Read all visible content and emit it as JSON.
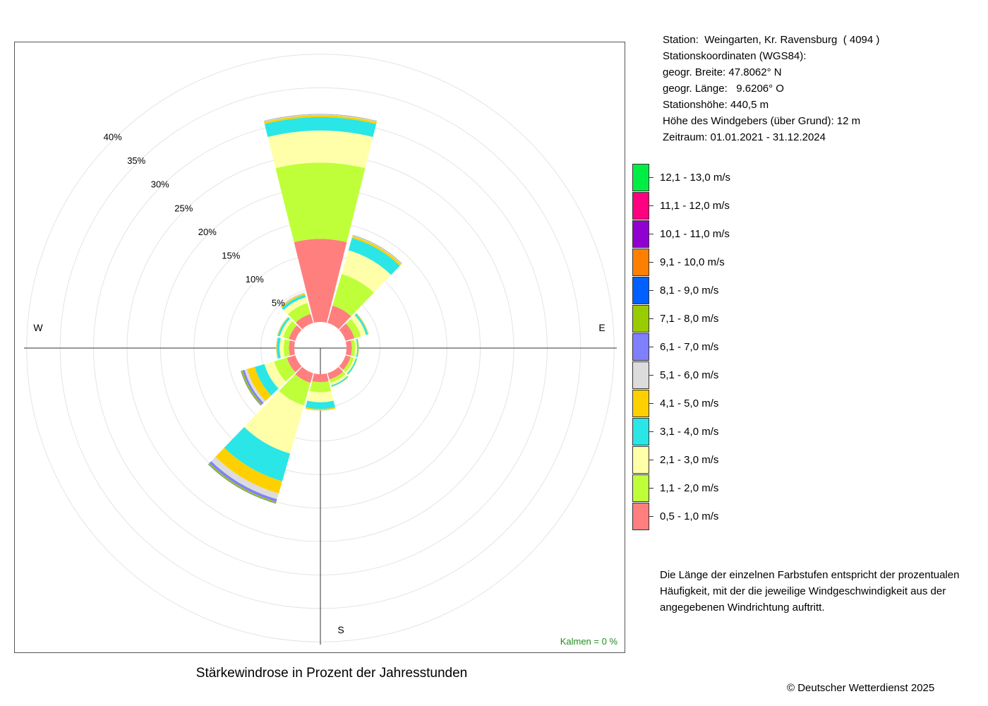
{
  "chart_data": {
    "type": "wind-rose",
    "title": "Stärkewindrose in Prozent der Jahresstunden",
    "radial_axis": {
      "max": 40,
      "ticks": [
        5,
        10,
        15,
        20,
        25,
        30,
        35,
        40
      ],
      "tick_labels": [
        "5%",
        "10%",
        "15%",
        "20%",
        "25%",
        "30%",
        "35%",
        "40%"
      ]
    },
    "compass_labels": {
      "west": "W",
      "east": "E",
      "south": "S"
    },
    "calm_label": "Kalmen  =  0 %",
    "calm_color": "#228b22",
    "speed_classes": [
      {
        "label": "0,5 - 1,0 m/s",
        "color": "#ff7f7f"
      },
      {
        "label": "1,1 - 2,0 m/s",
        "color": "#bfff3a"
      },
      {
        "label": "2,1 - 3,0 m/s",
        "color": "#ffffaa"
      },
      {
        "label": "3,1 - 4,0 m/s",
        "color": "#2ae6e6"
      },
      {
        "label": "4,1 - 5,0 m/s",
        "color": "#ffd000"
      },
      {
        "label": "5,1 - 6,0 m/s",
        "color": "#dcdcdc"
      },
      {
        "label": "6,1 - 7,0 m/s",
        "color": "#8080ff"
      },
      {
        "label": "7,1 - 8,0 m/s",
        "color": "#99cc00"
      },
      {
        "label": "8,1 - 9,0 m/s",
        "color": "#0060ff"
      },
      {
        "label": "9,1 - 10,0 m/s",
        "color": "#ff8000"
      },
      {
        "label": "10,1 - 11,0 m/s",
        "color": "#9000d0"
      },
      {
        "label": "11,1 - 12,0 m/s",
        "color": "#ff0080"
      },
      {
        "label": "12,1 - 13,0 m/s",
        "color": "#00ee44"
      }
    ],
    "directions": [
      {
        "direction_deg": 0,
        "values": [
          12.4,
          11.4,
          4.8,
          2.0,
          0.3,
          0.1,
          0.05,
          0.03,
          0,
          0,
          0,
          0,
          0
        ]
      },
      {
        "direction_deg": 30,
        "values": [
          2.7,
          4.9,
          3.7,
          1.9,
          0.3,
          0.1,
          0.05,
          0.03,
          0,
          0,
          0,
          0,
          0
        ]
      },
      {
        "direction_deg": 60,
        "values": [
          1.4,
          1.0,
          0.8,
          0.3,
          0.1,
          0.05,
          0,
          0,
          0,
          0,
          0,
          0,
          0
        ]
      },
      {
        "direction_deg": 90,
        "values": [
          0.8,
          0.5,
          0.3,
          0.2,
          0.05,
          0,
          0,
          0,
          0,
          0,
          0,
          0,
          0
        ]
      },
      {
        "direction_deg": 120,
        "values": [
          0.8,
          0.5,
          0.3,
          0.2,
          0.05,
          0,
          0,
          0,
          0,
          0,
          0,
          0,
          0
        ]
      },
      {
        "direction_deg": 150,
        "values": [
          1.0,
          0.5,
          0.4,
          0.2,
          0.05,
          0,
          0,
          0,
          0,
          0,
          0,
          0,
          0
        ]
      },
      {
        "direction_deg": 180,
        "values": [
          1.2,
          1.5,
          1.5,
          1.0,
          0.2,
          0.05,
          0,
          0,
          0,
          0,
          0,
          0,
          0
        ]
      },
      {
        "direction_deg": 210,
        "values": [
          1.5,
          3.5,
          7.5,
          4.3,
          1.9,
          0.9,
          0.4,
          0.2,
          0.05,
          0.03,
          0,
          0,
          0
        ]
      },
      {
        "direction_deg": 240,
        "values": [
          1.3,
          2.0,
          1.5,
          1.5,
          1.2,
          0.4,
          0.3,
          0.2,
          0.05,
          0.03,
          0,
          0,
          0
        ]
      },
      {
        "direction_deg": 270,
        "values": [
          0.8,
          0.8,
          0.6,
          0.4,
          0.1,
          0.05,
          0,
          0,
          0,
          0,
          0,
          0,
          0
        ]
      },
      {
        "direction_deg": 300,
        "values": [
          1.0,
          0.9,
          0.5,
          0.3,
          0.1,
          0.05,
          0,
          0,
          0,
          0,
          0,
          0,
          0
        ]
      },
      {
        "direction_deg": 330,
        "values": [
          1.4,
          1.7,
          0.9,
          0.4,
          0.2,
          0.1,
          0.03,
          0,
          0,
          0,
          0,
          0,
          0
        ]
      }
    ]
  },
  "station_info": [
    "Station:  Weingarten, Kr. Ravensburg  ( 4094 )",
    "Stationskoordinaten (WGS84):",
    "geogr. Breite: 47.8062° N",
    "geogr. Länge:   9.6206° O",
    "Stationshöhe: 440,5 m",
    "Höhe des Windgebers (über Grund): 12 m",
    "Zeitraum: 01.01.2021 - 31.12.2024"
  ],
  "note": "Die Länge der einzelnen Farbstufen entspricht der prozentualen Häufigkeit, mit der die jeweilige Windgeschwindigkeit aus der angegebenen Windrichtung auftritt.",
  "copyright": "© Deutscher Wetterdienst  2025"
}
